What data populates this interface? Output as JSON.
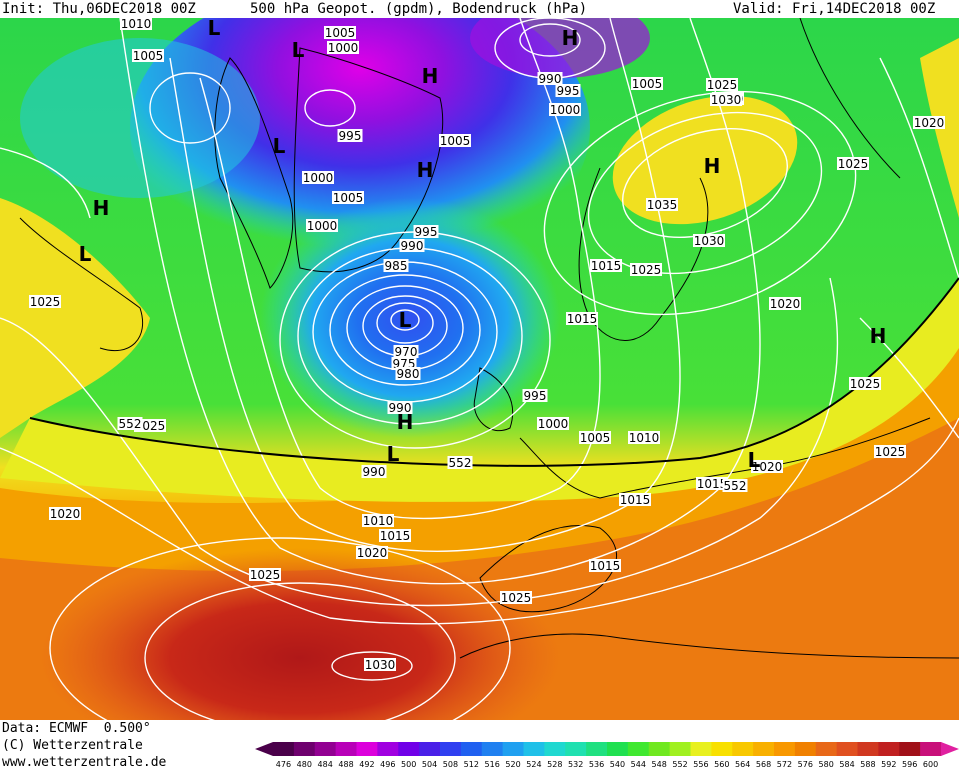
{
  "header": {
    "init": "Init: Thu,06DEC2018 00Z",
    "title": "500 hPa Geopot. (gpdm), Bodendruck (hPa)",
    "valid": "Valid: Fri,14DEC2018 00Z"
  },
  "footer": {
    "data_line": "Data: ECMWF  0.500°",
    "copyright": "(C) Wetterzentrale",
    "website": "www.wetterzentrale.de"
  },
  "colorbar": {
    "ticks": [
      "476",
      "480",
      "484",
      "488",
      "492",
      "496",
      "500",
      "504",
      "508",
      "512",
      "516",
      "520",
      "524",
      "528",
      "532",
      "536",
      "540",
      "544",
      "548",
      "552",
      "556",
      "560",
      "564",
      "568",
      "572",
      "576",
      "580",
      "584",
      "588",
      "592",
      "596",
      "600"
    ],
    "colors": [
      "#4a004a",
      "#6e006e",
      "#920092",
      "#b800b8",
      "#dc00dc",
      "#a000e0",
      "#7000e8",
      "#4a20e8",
      "#3040f0",
      "#2060f0",
      "#2080f0",
      "#20a0f0",
      "#20c0e8",
      "#20d8d0",
      "#20e0b0",
      "#20e080",
      "#20e050",
      "#40e830",
      "#70e820",
      "#a0f020",
      "#e8f020",
      "#f8e000",
      "#f8c800",
      "#f8b000",
      "#f89800",
      "#f08000",
      "#e86818",
      "#e05020",
      "#d03820",
      "#c02020",
      "#a01018",
      "#c8107a"
    ],
    "arrow_left_color": "#4a004a",
    "arrow_right_color": "#e020a0"
  },
  "map": {
    "pressure_labels": [
      {
        "text": "1010"
      },
      {
        "text": "1005"
      },
      {
        "text": "1000"
      },
      {
        "text": "1005"
      },
      {
        "text": "995"
      },
      {
        "text": "1000"
      },
      {
        "text": "1005"
      },
      {
        "text": "1000"
      },
      {
        "text": "995"
      },
      {
        "text": "990"
      },
      {
        "text": "985"
      },
      {
        "text": "970"
      },
      {
        "text": "975"
      },
      {
        "text": "980"
      },
      {
        "text": "990"
      },
      {
        "text": "990"
      },
      {
        "text": "1015"
      },
      {
        "text": "1025"
      },
      {
        "text": "1030"
      },
      {
        "text": "1020"
      },
      {
        "text": "1025"
      },
      {
        "text": "1020"
      },
      {
        "text": "1010"
      },
      {
        "text": "1015"
      },
      {
        "text": "1020"
      },
      {
        "text": "1025"
      },
      {
        "text": "1030"
      },
      {
        "text": "990"
      },
      {
        "text": "995"
      },
      {
        "text": "1000"
      },
      {
        "text": "1005"
      },
      {
        "text": "1015"
      },
      {
        "text": "1005"
      },
      {
        "text": "1025"
      },
      {
        "text": "1030"
      },
      {
        "text": "1020"
      },
      {
        "text": "1025"
      },
      {
        "text": "1035"
      },
      {
        "text": "1030"
      },
      {
        "text": "1025"
      },
      {
        "text": "1020"
      },
      {
        "text": "1015"
      },
      {
        "text": "995"
      },
      {
        "text": "1000"
      },
      {
        "text": "1005"
      },
      {
        "text": "1010"
      },
      {
        "text": "1015"
      },
      {
        "text": "1015"
      },
      {
        "text": "1020"
      },
      {
        "text": "1020"
      },
      {
        "text": "1025"
      },
      {
        "text": "1025"
      },
      {
        "text": "1025"
      },
      {
        "text": "1020"
      },
      {
        "text": "552"
      },
      {
        "text": "552"
      },
      {
        "text": "552"
      }
    ],
    "centers": [
      {
        "text": "L"
      },
      {
        "text": "L"
      },
      {
        "text": "L"
      },
      {
        "text": "H"
      },
      {
        "text": "H"
      },
      {
        "text": "H"
      },
      {
        "text": "H"
      },
      {
        "text": "L"
      },
      {
        "text": "H"
      },
      {
        "text": "L"
      },
      {
        "text": "H"
      },
      {
        "text": "H"
      },
      {
        "text": "L"
      },
      {
        "text": "L"
      }
    ]
  }
}
